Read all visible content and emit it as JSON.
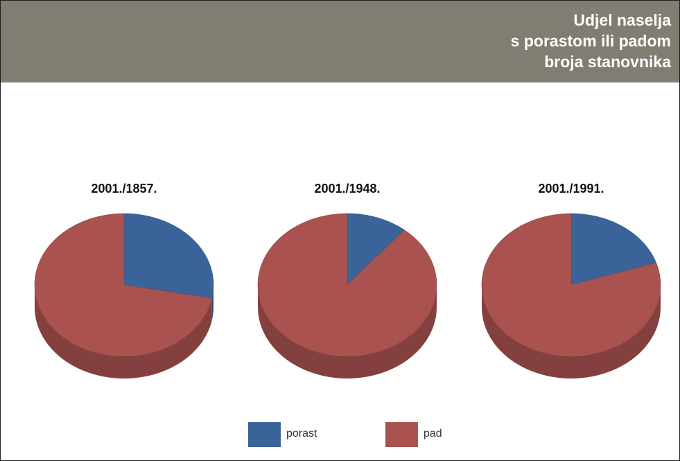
{
  "header": {
    "title_lines": [
      "Udjel naselja",
      "s porastom ili padom",
      "broja stanovnika"
    ]
  },
  "colors": {
    "header_bg": "#807d72",
    "porast": "#3a6399",
    "pad": "#a9524f"
  },
  "legend": {
    "items": [
      {
        "label": "porast",
        "color": "#3a6399"
      },
      {
        "label": "pad",
        "color": "#a9524f"
      }
    ]
  },
  "chart_data": [
    {
      "type": "pie",
      "title": "2001./1857.",
      "categories": [
        "porast",
        "pad"
      ],
      "values": [
        28,
        72
      ],
      "colors": [
        "#3a6399",
        "#a9524f"
      ]
    },
    {
      "type": "pie",
      "title": "2001./1948.",
      "categories": [
        "porast",
        "pad"
      ],
      "values": [
        11,
        89
      ],
      "colors": [
        "#3a6399",
        "#a9524f"
      ]
    },
    {
      "type": "pie",
      "title": "2001./1991.",
      "categories": [
        "porast",
        "pad"
      ],
      "values": [
        20,
        80
      ],
      "colors": [
        "#3a6399",
        "#a9524f"
      ]
    }
  ]
}
